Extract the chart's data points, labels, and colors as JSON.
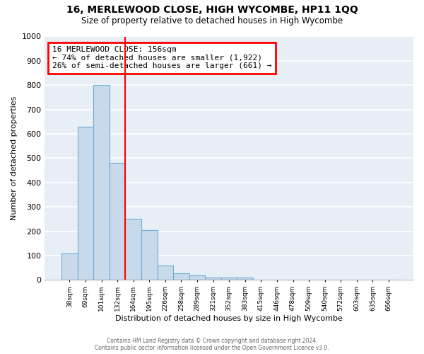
{
  "title": "16, MERLEWOOD CLOSE, HIGH WYCOMBE, HP11 1QQ",
  "subtitle": "Size of property relative to detached houses in High Wycombe",
  "xlabel": "Distribution of detached houses by size in High Wycombe",
  "ylabel": "Number of detached properties",
  "bar_color": "#c8d9ec",
  "bar_edge_color": "#6aaed6",
  "bg_color": "#e8eef5",
  "grid_color": "#ffffff",
  "categories": [
    "38sqm",
    "69sqm",
    "101sqm",
    "132sqm",
    "164sqm",
    "195sqm",
    "226sqm",
    "258sqm",
    "289sqm",
    "321sqm",
    "352sqm",
    "383sqm",
    "415sqm",
    "446sqm",
    "478sqm",
    "509sqm",
    "540sqm",
    "572sqm",
    "603sqm",
    "635sqm",
    "666sqm"
  ],
  "values": [
    110,
    630,
    800,
    480,
    250,
    205,
    60,
    28,
    18,
    10,
    10,
    10,
    0,
    0,
    0,
    0,
    0,
    0,
    0,
    0,
    0
  ],
  "red_line_x": 3.5,
  "annotation_line1": "16 MERLEWOOD CLOSE: 156sqm",
  "annotation_line2": "← 74% of detached houses are smaller (1,922)",
  "annotation_line3": "26% of semi-detached houses are larger (661) →",
  "ylim": [
    0,
    1000
  ],
  "yticks": [
    0,
    100,
    200,
    300,
    400,
    500,
    600,
    700,
    800,
    900,
    1000
  ],
  "footer1": "Contains HM Land Registry data © Crown copyright and database right 2024.",
  "footer2": "Contains public sector information licensed under the Open Government Licence v3.0."
}
